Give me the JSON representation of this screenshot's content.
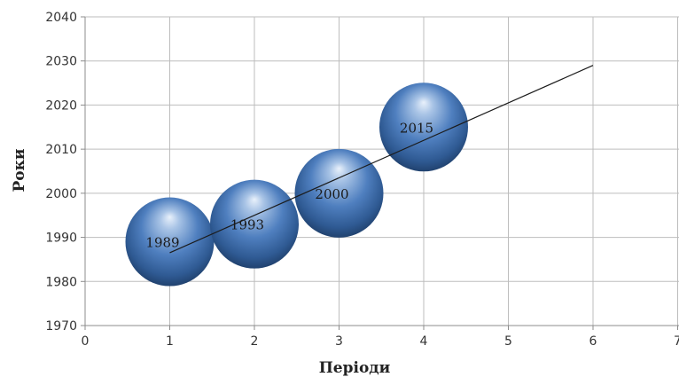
{
  "chart_data": {
    "type": "scatter",
    "title": "",
    "xlabel": "Періоди",
    "ylabel": "Роки",
    "xlim": [
      0,
      7
    ],
    "ylim": [
      1970,
      2040
    ],
    "x_ticks": [
      "0",
      "1",
      "2",
      "3",
      "4",
      "5",
      "6",
      "7"
    ],
    "y_ticks": [
      "1970",
      "1980",
      "1990",
      "2000",
      "2010",
      "2020",
      "2030",
      "2040"
    ],
    "grid": true,
    "legend": "none",
    "series": [
      {
        "points": [
          {
            "x": 1,
            "y": 1989,
            "label": "1989"
          },
          {
            "x": 2,
            "y": 1993,
            "label": "1993"
          },
          {
            "x": 3,
            "y": 2000,
            "label": "2000"
          },
          {
            "x": 4,
            "y": 2015,
            "label": "2015"
          }
        ],
        "marker": "bubble",
        "color": "#4a78b5"
      }
    ],
    "trendline": {
      "type": "linear",
      "x": [
        1,
        6
      ],
      "y": [
        1986.5,
        2029
      ]
    }
  }
}
